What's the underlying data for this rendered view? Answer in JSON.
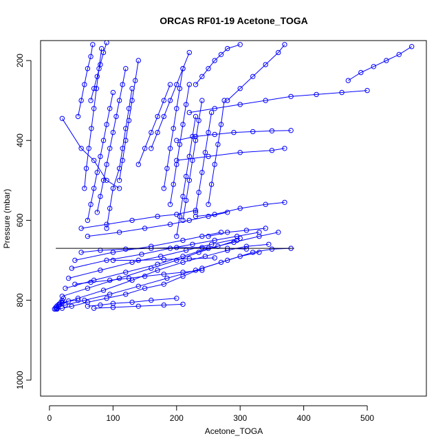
{
  "chart_data": {
    "type": "scatter",
    "title": "ORCAS RF01-19 Acetone_TOGA",
    "xlabel": "Acetone_TOGA",
    "ylabel": "Pressure (mbar)",
    "xlim": [
      -14,
      593
    ],
    "ylim": [
      1040,
      150
    ],
    "y_reversed": true,
    "x_ticks": [
      "0",
      "100",
      "200",
      "300",
      "400",
      "500"
    ],
    "y_ticks": [
      "200",
      "400",
      "600",
      "800",
      "1000"
    ],
    "marker": "open-circle",
    "connected_lines": true,
    "grid": false,
    "legend": "none",
    "series_color": "#0000ff",
    "highlight_line_color": "#000000",
    "highlight_line": {
      "x": [
        10,
        385
      ],
      "y": [
        670,
        670
      ]
    },
    "series": [
      {
        "x": [
          12,
          20,
          35,
          60,
          90,
          120,
          150,
          180,
          210,
          240,
          280,
          320,
          350,
          380
        ],
        "y": [
          822,
          820,
          815,
          805,
          795,
          785,
          770,
          760,
          740,
          720,
          700,
          680,
          672,
          670
        ]
      },
      {
        "x": [
          10,
          25,
          55,
          95,
          140,
          185,
          230,
          270,
          300,
          330
        ],
        "y": [
          818,
          812,
          800,
          785,
          765,
          745,
          725,
          705,
          690,
          680
        ]
      },
      {
        "x": [
          15,
          45,
          85,
          130,
          170,
          210,
          245,
          280,
          310,
          345
        ],
        "y": [
          810,
          795,
          775,
          750,
          725,
          705,
          690,
          675,
          665,
          660
        ]
      },
      {
        "x": [
          20,
          60,
          110,
          160,
          200,
          235,
          265,
          295
        ],
        "y": [
          790,
          770,
          745,
          720,
          700,
          680,
          665,
          650
        ]
      },
      {
        "x": [
          25,
          70,
          120,
          170,
          210,
          250,
          290,
          330,
          360
        ],
        "y": [
          770,
          750,
          730,
          710,
          690,
          670,
          655,
          640,
          630
        ]
      },
      {
        "x": [
          30,
          80,
          130,
          175,
          215,
          255,
          300
        ],
        "y": [
          745,
          725,
          705,
          690,
          675,
          660,
          645
        ]
      },
      {
        "x": [
          35,
          90,
          145,
          190,
          225,
          260,
          295,
          330
        ],
        "y": [
          720,
          700,
          685,
          670,
          660,
          650,
          640,
          630
        ]
      },
      {
        "x": [
          40,
          100,
          160,
          210,
          240,
          270
        ],
        "y": [
          700,
          680,
          665,
          650,
          640,
          630
        ]
      },
      {
        "x": [
          60,
          110,
          150,
          190,
          220,
          250,
          280
        ],
        "y": [
          640,
          630,
          620,
          610,
          600,
          590,
          580
        ]
      },
      {
        "x": [
          50,
          90,
          130,
          170,
          200,
          230
        ],
        "y": [
          620,
          610,
          600,
          590,
          585,
          575
        ]
      },
      {
        "x": [
          75,
          80,
          85,
          90,
          95,
          100,
          105,
          110,
          115,
          120
        ],
        "y": [
          580,
          540,
          500,
          460,
          420,
          380,
          340,
          300,
          260,
          220
        ]
      },
      {
        "x": [
          60,
          65,
          70,
          75,
          80,
          85,
          90,
          95,
          100
        ],
        "y": [
          600,
          560,
          520,
          480,
          440,
          400,
          360,
          320,
          280
        ]
      },
      {
        "x": [
          90,
          95,
          100,
          110,
          115,
          120,
          125,
          130
        ],
        "y": [
          620,
          570,
          520,
          470,
          420,
          370,
          320,
          270
        ]
      },
      {
        "x": [
          55,
          58,
          62,
          66,
          70,
          74,
          78,
          82
        ],
        "y": [
          520,
          470,
          420,
          370,
          320,
          270,
          220,
          170
        ]
      },
      {
        "x": [
          45,
          50,
          55,
          60,
          65,
          68
        ],
        "y": [
          340,
          300,
          260,
          220,
          190,
          160
        ]
      },
      {
        "x": [
          65,
          70,
          75,
          80,
          85,
          90
        ],
        "y": [
          300,
          270,
          240,
          210,
          180,
          155
        ]
      },
      {
        "x": [
          110,
          115,
          120,
          125,
          130,
          135,
          140
        ],
        "y": [
          500,
          450,
          400,
          350,
          300,
          250,
          200
        ]
      },
      {
        "x": [
          140,
          150,
          160,
          170,
          180,
          190
        ],
        "y": [
          460,
          420,
          380,
          340,
          300,
          260
        ]
      },
      {
        "x": [
          200,
          205,
          210,
          215,
          220,
          225,
          230
        ],
        "y": [
          640,
          590,
          540,
          490,
          440,
          390,
          340
        ]
      },
      {
        "x": [
          210,
          215,
          220,
          225,
          230,
          235,
          240
        ],
        "y": [
          600,
          550,
          500,
          450,
          400,
          350,
          300
        ]
      },
      {
        "x": [
          230,
          235,
          240,
          245,
          250,
          255
        ],
        "y": [
          580,
          530,
          480,
          430,
          380,
          330
        ]
      },
      {
        "x": [
          190,
          195,
          200,
          205,
          210,
          215,
          220
        ],
        "y": [
          560,
          510,
          460,
          410,
          360,
          310,
          260
        ]
      },
      {
        "x": [
          250,
          255,
          260,
          265,
          270,
          275
        ],
        "y": [
          560,
          510,
          460,
          410,
          360,
          300
        ]
      },
      {
        "x": [
          180,
          185,
          190,
          195,
          200,
          205,
          210
        ],
        "y": [
          520,
          470,
          420,
          370,
          320,
          270,
          220
        ]
      },
      {
        "x": [
          160,
          170,
          180,
          190,
          200,
          210,
          220
        ],
        "y": [
          420,
          380,
          340,
          300,
          260,
          220,
          180
        ]
      },
      {
        "x": [
          230,
          240,
          250,
          260,
          270,
          280,
          300
        ],
        "y": [
          260,
          240,
          220,
          200,
          185,
          170,
          160
        ]
      },
      {
        "x": [
          280,
          300,
          320,
          340,
          360,
          370
        ],
        "y": [
          300,
          270,
          240,
          210,
          180,
          160
        ]
      },
      {
        "x": [
          200,
          230,
          260,
          290,
          320,
          350,
          380
        ],
        "y": [
          400,
          390,
          385,
          380,
          378,
          376,
          375
        ]
      },
      {
        "x": [
          220,
          260,
          300,
          340,
          380,
          420,
          460,
          500
        ],
        "y": [
          330,
          320,
          310,
          300,
          290,
          285,
          280,
          275
        ]
      },
      {
        "x": [
          470,
          490,
          510,
          530,
          550,
          570
        ],
        "y": [
          250,
          230,
          215,
          200,
          185,
          165
        ]
      },
      {
        "x": [
          200,
          250,
          300,
          350,
          370
        ],
        "y": [
          450,
          440,
          430,
          425,
          420
        ]
      },
      {
        "x": [
          230,
          260,
          300,
          340,
          370
        ],
        "y": [
          590,
          585,
          570,
          560,
          555
        ]
      },
      {
        "x": [
          250,
          280,
          310,
          340
        ],
        "y": [
          640,
          630,
          625,
          620
        ]
      },
      {
        "x": [
          20,
          50,
          70,
          90,
          110
        ],
        "y": [
          345,
          420,
          450,
          500,
          520
        ]
      },
      {
        "x": [
          10,
          12,
          14,
          16,
          18,
          20,
          22
        ],
        "y": [
          822,
          820,
          815,
          810,
          805,
          800,
          795
        ]
      },
      {
        "x": [
          8,
          10,
          12,
          15,
          20,
          30,
          45
        ],
        "y": [
          822,
          818,
          814,
          810,
          806,
          802,
          800
        ]
      },
      {
        "x": [
          70,
          100,
          140,
          180,
          210
        ],
        "y": [
          820,
          818,
          815,
          812,
          810
        ]
      },
      {
        "x": [
          60,
          80,
          100,
          130,
          160,
          200
        ],
        "y": [
          815,
          812,
          808,
          805,
          800,
          795
        ]
      },
      {
        "x": [
          40,
          65,
          95,
          125,
          150,
          180,
          210,
          240
        ],
        "y": [
          760,
          755,
          750,
          745,
          740,
          735,
          730,
          725
        ]
      },
      {
        "x": [
          100,
          140,
          180,
          220,
          260
        ],
        "y": [
          700,
          700,
          698,
          696,
          694
        ]
      },
      {
        "x": [
          50,
          80,
          120,
          160,
          200,
          240,
          280,
          310
        ],
        "y": [
          680,
          675,
          672,
          670,
          668,
          668,
          670,
          672
        ]
      }
    ]
  }
}
